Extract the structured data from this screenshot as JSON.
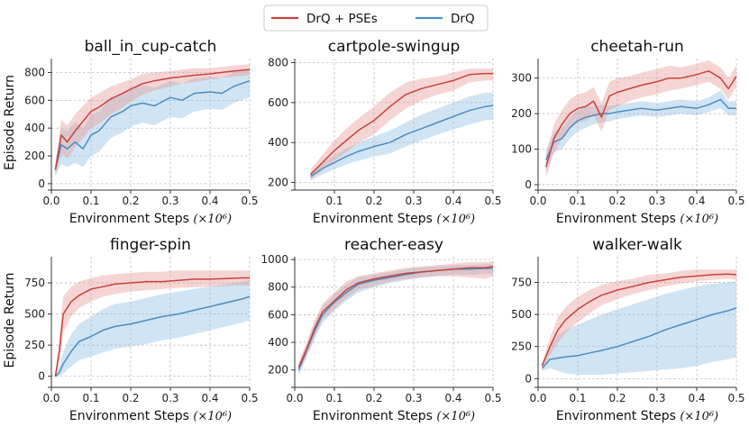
{
  "legend": [
    {
      "label": "DrQ + PSEs",
      "color": "#c9423a",
      "band": "#e89a96"
    },
    {
      "label": "DrQ",
      "color": "#4a8ec4",
      "band": "#8fbfe3"
    }
  ],
  "chart_data": [
    {
      "type": "line",
      "title": "ball_in_cup-catch",
      "xlabel": "Environment Steps",
      "xlabel_unit": "(×10⁶)",
      "ylabel": "Episode Return",
      "xlim": [
        0,
        0.5
      ],
      "ylim": [
        -20,
        900
      ],
      "xticks": [
        0.0,
        0.1,
        0.2,
        0.3,
        0.4,
        0.5
      ],
      "xtick_labels": [
        "0.0",
        "0.1",
        "0.2",
        "0.3",
        "0.4",
        "0.5"
      ],
      "yticks": [
        0,
        200,
        400,
        600,
        800
      ],
      "ytick_labels": [
        "0",
        "200",
        "400",
        "600",
        "800"
      ],
      "x": [
        0.01,
        0.025,
        0.04,
        0.06,
        0.08,
        0.1,
        0.12,
        0.15,
        0.18,
        0.2,
        0.23,
        0.26,
        0.3,
        0.33,
        0.36,
        0.4,
        0.43,
        0.46,
        0.5
      ],
      "series": [
        {
          "name": "DrQ + PSEs",
          "values": [
            100,
            350,
            300,
            380,
            450,
            520,
            550,
            610,
            650,
            680,
            720,
            740,
            760,
            770,
            780,
            790,
            800,
            810,
            820
          ],
          "lower": [
            60,
            220,
            180,
            260,
            330,
            400,
            430,
            500,
            550,
            590,
            640,
            670,
            700,
            720,
            730,
            750,
            760,
            770,
            780
          ],
          "upper": [
            140,
            460,
            420,
            500,
            560,
            620,
            650,
            700,
            730,
            750,
            790,
            800,
            810,
            820,
            830,
            830,
            840,
            850,
            860
          ]
        },
        {
          "name": "DrQ",
          "values": [
            100,
            280,
            250,
            300,
            250,
            350,
            380,
            480,
            520,
            560,
            580,
            560,
            620,
            600,
            650,
            660,
            650,
            700,
            740
          ],
          "lower": [
            50,
            140,
            120,
            150,
            120,
            200,
            230,
            330,
            370,
            410,
            440,
            420,
            480,
            470,
            520,
            540,
            530,
            580,
            620
          ],
          "upper": [
            150,
            400,
            380,
            440,
            400,
            500,
            520,
            620,
            650,
            690,
            710,
            690,
            740,
            720,
            760,
            770,
            760,
            800,
            830
          ]
        }
      ]
    },
    {
      "type": "line",
      "title": "cartpole-swingup",
      "xlabel": "Environment Steps",
      "xlabel_unit": "(×10⁶)",
      "ylabel": "",
      "xlim": [
        0,
        0.5
      ],
      "ylim": [
        180,
        820
      ],
      "xticks": [
        0.1,
        0.2,
        0.3,
        0.4,
        0.5
      ],
      "xtick_labels": [
        "0.1",
        "0.2",
        "0.3",
        "0.4",
        "0.5"
      ],
      "yticks": [
        200,
        400,
        600,
        800
      ],
      "ytick_labels": [
        "200",
        "400",
        "600",
        "800"
      ],
      "x": [
        0.04,
        0.07,
        0.1,
        0.13,
        0.16,
        0.2,
        0.24,
        0.28,
        0.32,
        0.36,
        0.4,
        0.44,
        0.48,
        0.5
      ],
      "series": [
        {
          "name": "DrQ + PSEs",
          "values": [
            240,
            300,
            360,
            410,
            460,
            510,
            580,
            640,
            670,
            690,
            710,
            740,
            745,
            745
          ],
          "lower": [
            215,
            260,
            310,
            350,
            400,
            440,
            510,
            570,
            610,
            640,
            660,
            700,
            710,
            710
          ],
          "upper": [
            265,
            340,
            410,
            470,
            520,
            580,
            650,
            700,
            720,
            730,
            750,
            770,
            770,
            770
          ]
        },
        {
          "name": "DrQ",
          "values": [
            230,
            270,
            300,
            330,
            355,
            380,
            400,
            440,
            470,
            500,
            530,
            560,
            580,
            585
          ],
          "lower": [
            210,
            240,
            265,
            290,
            310,
            330,
            345,
            380,
            410,
            440,
            465,
            490,
            510,
            515
          ],
          "upper": [
            250,
            300,
            335,
            370,
            400,
            430,
            460,
            500,
            540,
            570,
            600,
            630,
            650,
            650
          ]
        }
      ]
    },
    {
      "type": "line",
      "title": "cheetah-run",
      "xlabel": "Environment Steps",
      "xlabel_unit": "(×10⁶)",
      "ylabel": "",
      "xlim": [
        0,
        0.5
      ],
      "ylim": [
        -5,
        355
      ],
      "xticks": [
        0.0,
        0.1,
        0.2,
        0.3,
        0.4,
        0.5
      ],
      "xtick_labels": [
        "0.0",
        "0.1",
        "0.2",
        "0.3",
        "0.4",
        "0.5"
      ],
      "yticks": [
        0,
        100,
        200,
        300
      ],
      "ytick_labels": [
        "0",
        "100",
        "200",
        "300"
      ],
      "x": [
        0.02,
        0.04,
        0.06,
        0.08,
        0.1,
        0.12,
        0.14,
        0.16,
        0.18,
        0.2,
        0.23,
        0.26,
        0.3,
        0.33,
        0.36,
        0.4,
        0.43,
        0.46,
        0.48,
        0.5
      ],
      "series": [
        {
          "name": "DrQ + PSEs",
          "values": [
            50,
            130,
            170,
            200,
            215,
            220,
            235,
            190,
            250,
            260,
            270,
            280,
            290,
            300,
            300,
            310,
            320,
            300,
            270,
            305
          ],
          "lower": [
            20,
            90,
            130,
            160,
            175,
            180,
            195,
            150,
            210,
            220,
            235,
            245,
            255,
            265,
            270,
            280,
            290,
            270,
            240,
            275
          ],
          "upper": [
            80,
            170,
            210,
            240,
            255,
            260,
            275,
            230,
            290,
            300,
            305,
            315,
            325,
            335,
            330,
            340,
            350,
            330,
            300,
            335
          ]
        },
        {
          "name": "DrQ",
          "values": [
            70,
            120,
            130,
            160,
            180,
            190,
            195,
            200,
            200,
            205,
            210,
            215,
            210,
            215,
            220,
            215,
            225,
            240,
            215,
            215
          ],
          "lower": [
            40,
            90,
            100,
            130,
            150,
            160,
            170,
            175,
            178,
            185,
            190,
            195,
            190,
            195,
            200,
            195,
            205,
            215,
            195,
            195
          ],
          "upper": [
            100,
            150,
            160,
            190,
            210,
            220,
            220,
            225,
            222,
            225,
            230,
            235,
            230,
            235,
            240,
            235,
            245,
            265,
            235,
            235
          ]
        }
      ]
    },
    {
      "type": "line",
      "title": "finger-spin",
      "xlabel": "Environment Steps",
      "xlabel_unit": "(×10⁶)",
      "ylabel": "Episode Return",
      "xlim": [
        0,
        0.5
      ],
      "ylim": [
        -60,
        960
      ],
      "xticks": [
        0.0,
        0.1,
        0.2,
        0.3,
        0.4,
        0.5
      ],
      "xtick_labels": [
        "0.0",
        "0.1",
        "0.2",
        "0.3",
        "0.4",
        "0.5"
      ],
      "yticks": [
        0,
        250,
        500,
        750
      ],
      "ytick_labels": [
        "0",
        "250",
        "500",
        "750"
      ],
      "x": [
        0.01,
        0.02,
        0.03,
        0.05,
        0.07,
        0.1,
        0.13,
        0.16,
        0.2,
        0.24,
        0.28,
        0.32,
        0.36,
        0.4,
        0.44,
        0.48,
        0.5
      ],
      "series": [
        {
          "name": "DrQ + PSEs",
          "values": [
            0,
            200,
            500,
            600,
            650,
            700,
            720,
            740,
            750,
            760,
            760,
            770,
            780,
            780,
            785,
            790,
            790
          ],
          "lower": [
            0,
            100,
            350,
            480,
            550,
            600,
            640,
            660,
            680,
            690,
            700,
            710,
            715,
            720,
            725,
            730,
            730
          ],
          "upper": [
            0,
            300,
            640,
            720,
            760,
            790,
            810,
            820,
            830,
            840,
            840,
            850,
            850,
            850,
            850,
            850,
            850
          ]
        },
        {
          "name": "DrQ",
          "values": [
            0,
            30,
            100,
            200,
            280,
            320,
            370,
            400,
            420,
            450,
            480,
            500,
            530,
            560,
            590,
            620,
            640
          ],
          "lower": [
            0,
            0,
            20,
            80,
            130,
            160,
            190,
            220,
            240,
            260,
            290,
            310,
            340,
            370,
            400,
            430,
            450
          ],
          "upper": [
            0,
            80,
            200,
            340,
            420,
            480,
            540,
            580,
            600,
            630,
            660,
            680,
            700,
            720,
            740,
            760,
            770
          ]
        }
      ]
    },
    {
      "type": "line",
      "title": "reacher-easy",
      "xlabel": "Environment Steps",
      "xlabel_unit": "(×10⁶)",
      "ylabel": "",
      "xlim": [
        0,
        0.5
      ],
      "ylim": [
        100,
        1020
      ],
      "xticks": [
        0.0,
        0.1,
        0.2,
        0.3,
        0.4,
        0.5
      ],
      "xtick_labels": [
        "0.0",
        "0.1",
        "0.2",
        "0.3",
        "0.4",
        "0.5"
      ],
      "yticks": [
        200,
        400,
        600,
        800,
        1000
      ],
      "ytick_labels": [
        "200",
        "400",
        "600",
        "800",
        "1000"
      ],
      "x": [
        0.01,
        0.03,
        0.05,
        0.07,
        0.1,
        0.13,
        0.16,
        0.2,
        0.24,
        0.28,
        0.32,
        0.36,
        0.4,
        0.44,
        0.48,
        0.5
      ],
      "series": [
        {
          "name": "DrQ + PSEs",
          "values": [
            220,
            350,
            500,
            620,
            700,
            780,
            830,
            860,
            880,
            900,
            910,
            920,
            930,
            940,
            940,
            950
          ],
          "lower": [
            180,
            300,
            440,
            560,
            640,
            720,
            780,
            810,
            840,
            860,
            870,
            880,
            880,
            870,
            860,
            880
          ],
          "upper": [
            260,
            400,
            560,
            680,
            760,
            840,
            880,
            900,
            920,
            940,
            950,
            960,
            970,
            980,
            980,
            990
          ]
        },
        {
          "name": "DrQ",
          "values": [
            200,
            340,
            480,
            600,
            690,
            760,
            820,
            850,
            870,
            890,
            910,
            920,
            930,
            930,
            935,
            935
          ],
          "lower": [
            160,
            290,
            420,
            540,
            630,
            700,
            760,
            800,
            830,
            850,
            870,
            880,
            890,
            890,
            895,
            895
          ],
          "upper": [
            240,
            390,
            540,
            660,
            750,
            820,
            870,
            890,
            910,
            930,
            945,
            950,
            960,
            960,
            965,
            965
          ]
        }
      ]
    },
    {
      "type": "line",
      "title": "walker-walk",
      "xlabel": "Environment Steps",
      "xlabel_unit": "(×10⁶)",
      "ylabel": "",
      "xlim": [
        0,
        0.5
      ],
      "ylim": [
        -40,
        950
      ],
      "xticks": [
        0.0,
        0.1,
        0.2,
        0.3,
        0.4,
        0.5
      ],
      "xtick_labels": [
        "0.0",
        "0.1",
        "0.2",
        "0.3",
        "0.4",
        "0.5"
      ],
      "yticks": [
        0,
        250,
        500,
        750
      ],
      "ytick_labels": [
        "0",
        "250",
        "500",
        "750"
      ],
      "x": [
        0.01,
        0.03,
        0.05,
        0.07,
        0.1,
        0.13,
        0.16,
        0.2,
        0.24,
        0.28,
        0.32,
        0.36,
        0.4,
        0.44,
        0.48,
        0.5
      ],
      "series": [
        {
          "name": "DrQ + PSEs",
          "values": [
            100,
            250,
            380,
            460,
            540,
            600,
            650,
            690,
            720,
            750,
            770,
            790,
            800,
            810,
            815,
            810
          ],
          "lower": [
            80,
            180,
            280,
            360,
            440,
            510,
            570,
            620,
            660,
            690,
            720,
            740,
            760,
            770,
            780,
            770
          ],
          "upper": [
            120,
            320,
            480,
            560,
            640,
            690,
            730,
            760,
            780,
            810,
            820,
            840,
            850,
            850,
            850,
            850
          ]
        },
        {
          "name": "DrQ",
          "values": [
            80,
            150,
            160,
            170,
            180,
            200,
            220,
            250,
            290,
            330,
            380,
            420,
            460,
            500,
            530,
            550
          ],
          "lower": [
            60,
            80,
            60,
            40,
            30,
            30,
            30,
            40,
            50,
            60,
            70,
            80,
            100,
            130,
            150,
            170
          ],
          "upper": [
            100,
            260,
            340,
            380,
            420,
            460,
            500,
            540,
            580,
            620,
            660,
            690,
            720,
            740,
            750,
            760
          ]
        }
      ]
    }
  ]
}
